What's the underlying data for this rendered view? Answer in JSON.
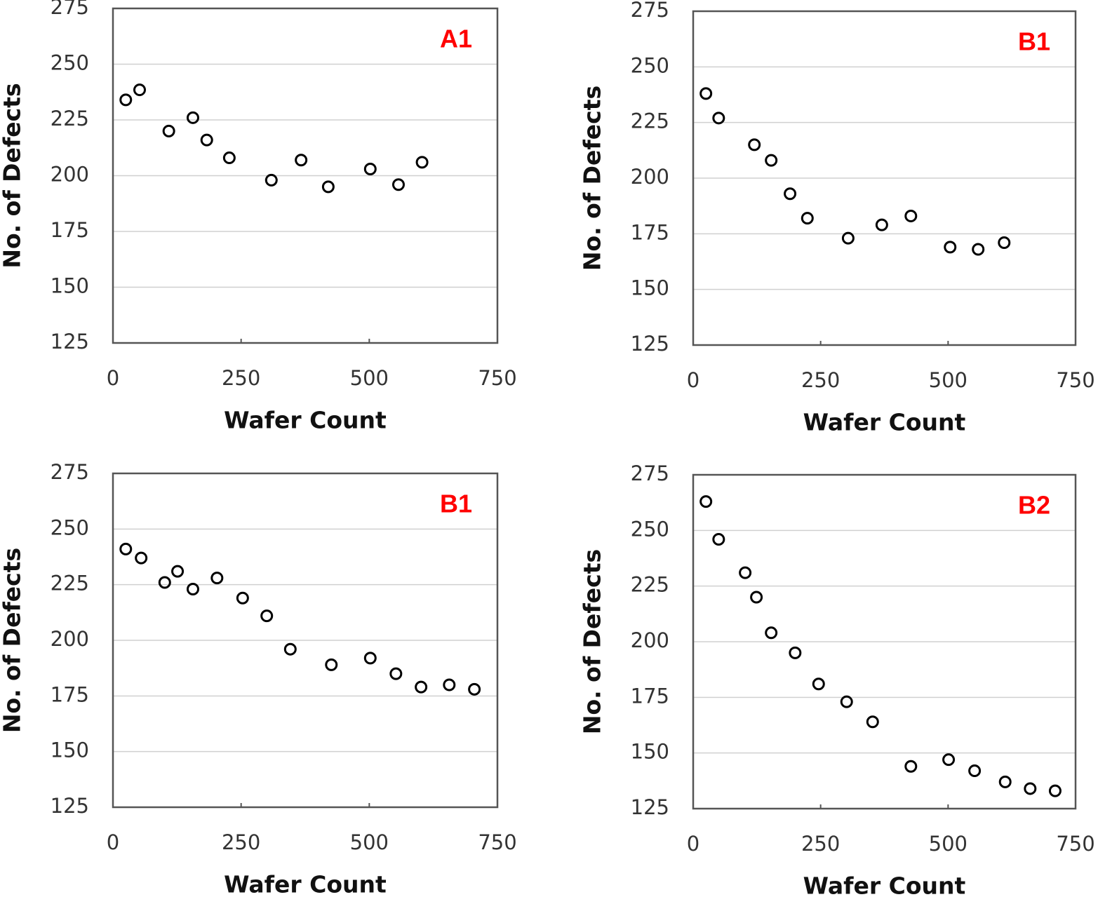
{
  "chart_data": [
    {
      "type": "scatter",
      "annotation": "A1",
      "annotation_color": "#ff0000",
      "x_label": "Wafer Count",
      "y_label": "No. of Defects",
      "color": "#000000",
      "grid": true,
      "x": [
        25,
        52,
        109,
        156,
        183,
        227,
        309,
        367,
        420,
        502,
        557,
        603
      ],
      "values": [
        234,
        238.5,
        220,
        226,
        216,
        208,
        198,
        207,
        195,
        203,
        196,
        206
      ],
      "xlim": [
        0,
        750
      ],
      "xticks": [
        0,
        250,
        500,
        750
      ],
      "ylim": [
        125,
        275
      ],
      "yticks": [
        125,
        150,
        175,
        200,
        225,
        250,
        275
      ]
    },
    {
      "type": "scatter",
      "annotation": "B1",
      "annotation_color": "#ff0000",
      "x_label": "Wafer Count",
      "y_label": "No. of Defects",
      "color": "#000000",
      "grid": true,
      "x": [
        25,
        50,
        120,
        153,
        190,
        224,
        304,
        370,
        427,
        504,
        559,
        610
      ],
      "values": [
        238,
        227,
        215,
        208,
        193,
        182,
        173,
        179,
        183,
        169,
        168,
        171
      ],
      "xlim": [
        0,
        750
      ],
      "xticks": [
        0,
        250,
        500,
        750
      ],
      "ylim": [
        125,
        275
      ],
      "yticks": [
        125,
        150,
        175,
        200,
        225,
        250,
        275
      ]
    },
    {
      "type": "scatter",
      "annotation": "B1",
      "annotation_color": "#ff0000",
      "x_label": "Wafer Count",
      "y_label": "No. of Defects",
      "color": "#000000",
      "grid": true,
      "x": [
        25,
        55,
        101,
        126,
        156,
        203,
        253,
        300,
        346,
        426,
        502,
        552,
        601,
        656,
        705
      ],
      "values": [
        241,
        237,
        226,
        231,
        223,
        228,
        219,
        211,
        196,
        189,
        192,
        185,
        179,
        180,
        178
      ],
      "xlim": [
        0,
        750
      ],
      "xticks": [
        0,
        250,
        500,
        750
      ],
      "ylim": [
        125,
        275
      ],
      "yticks": [
        125,
        150,
        175,
        200,
        225,
        250,
        275
      ]
    },
    {
      "type": "scatter",
      "annotation": "B2",
      "annotation_color": "#ff0000",
      "x_label": "Wafer Count",
      "y_label": "No. of Defects",
      "color": "#000000",
      "grid": true,
      "x": [
        25,
        50,
        102,
        124,
        153,
        200,
        246,
        301,
        352,
        427,
        501,
        552,
        612,
        661,
        710
      ],
      "values": [
        263,
        246,
        231,
        220,
        204,
        195,
        181,
        173,
        164,
        144,
        147,
        142,
        137,
        134,
        133
      ],
      "xlim": [
        0,
        750
      ],
      "xticks": [
        0,
        250,
        500,
        750
      ],
      "ylim": [
        125,
        275
      ],
      "yticks": [
        125,
        150,
        175,
        200,
        225,
        250,
        275
      ]
    }
  ]
}
